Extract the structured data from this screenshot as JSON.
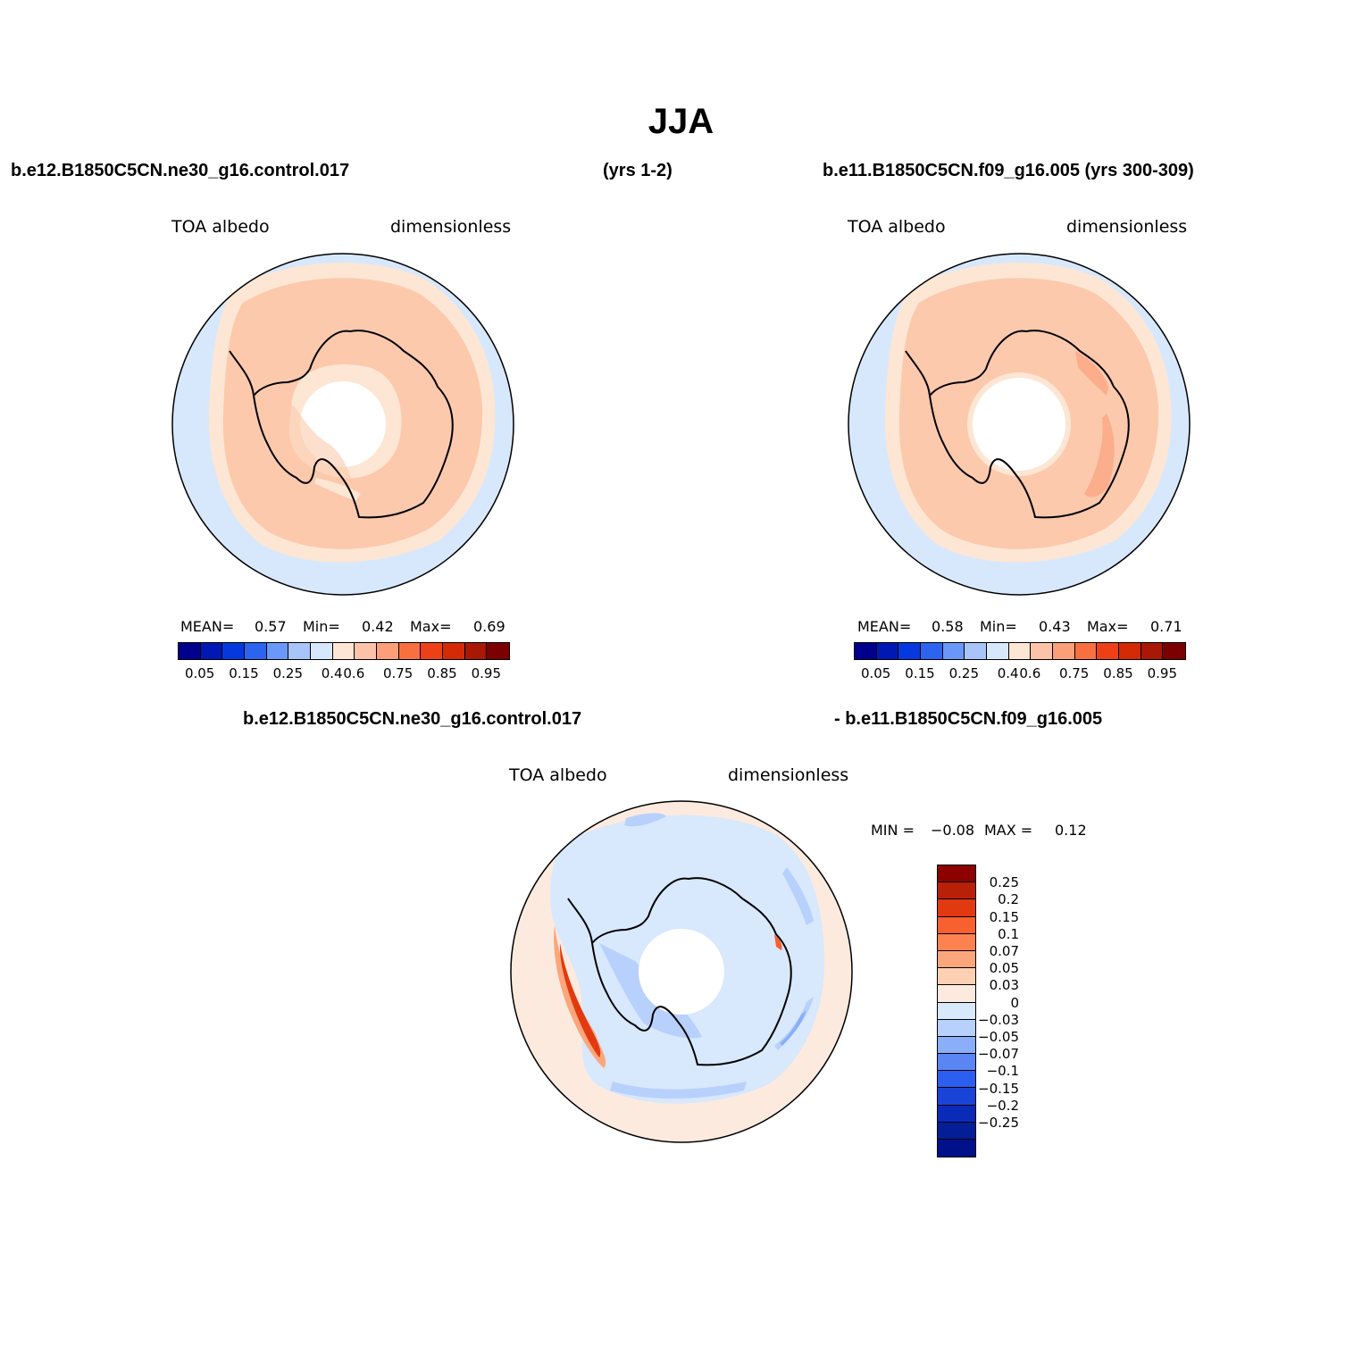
{
  "title": "JJA",
  "header": {
    "left_case": "b.e12.B1850C5CN.ne30_g16.control.017",
    "left_years": "(yrs 1-2)",
    "right_case": "b.e11.B1850C5CN.f09_g16.005 (yrs 300-309)",
    "diff_case_a": "b.e12.B1850C5CN.ne30_g16.control.017",
    "diff_case_b": "- b.e11.B1850C5CN.f09_g16.005"
  },
  "panels": [
    {
      "variable": "TOA  albedo",
      "units": "dimensionless",
      "mean_label": "MEAN=",
      "mean": "0.57",
      "min_label": "Min=",
      "min": "0.42",
      "max_label": "Max=",
      "max": "0.69"
    },
    {
      "variable": "TOA  albedo",
      "units": "dimensionless",
      "mean_label": "MEAN=",
      "mean": "0.58",
      "min_label": "Min=",
      "min": "0.43",
      "max_label": "Max=",
      "max": "0.71"
    }
  ],
  "diff_panel": {
    "variable": "TOA  albedo",
    "units": "dimensionless",
    "min_label": "MIN =",
    "min": "−0.08",
    "max_label": "MAX =",
    "max": "0.12"
  },
  "colorbar_abs": {
    "colors": [
      "#00008c",
      "#0018b4",
      "#0638e0",
      "#2c64f0",
      "#6a98f8",
      "#a8c4fa",
      "#d7e8fd",
      "#fde6d4",
      "#fcc3a8",
      "#fb9f78",
      "#f8703f",
      "#ee4017",
      "#d42a08",
      "#a81804",
      "#7c0000"
    ],
    "tick_labels": [
      "0.05",
      "0.15",
      "0.25",
      "0.4",
      "0.6",
      "0.75",
      "0.85",
      "0.95"
    ]
  },
  "colorbar_diff": {
    "colors": [
      "#8c0000",
      "#b82008",
      "#e23a10",
      "#f86030",
      "#fc8250",
      "#fca67c",
      "#fdd0b4",
      "#fdeade",
      "#d8e8fd",
      "#b8d0fc",
      "#8aaef8",
      "#5a86f4",
      "#2c5ef0",
      "#1a44d8",
      "#0a2ab8",
      "#041e98",
      "#00108a"
    ],
    "tick_labels": [
      "0.25",
      "0.2",
      "0.15",
      "0.1",
      "0.07",
      "0.05",
      "0.03",
      "0",
      "−0.03",
      "−0.05",
      "−0.07",
      "−0.1",
      "−0.15",
      "−0.2",
      "−0.25"
    ]
  }
}
